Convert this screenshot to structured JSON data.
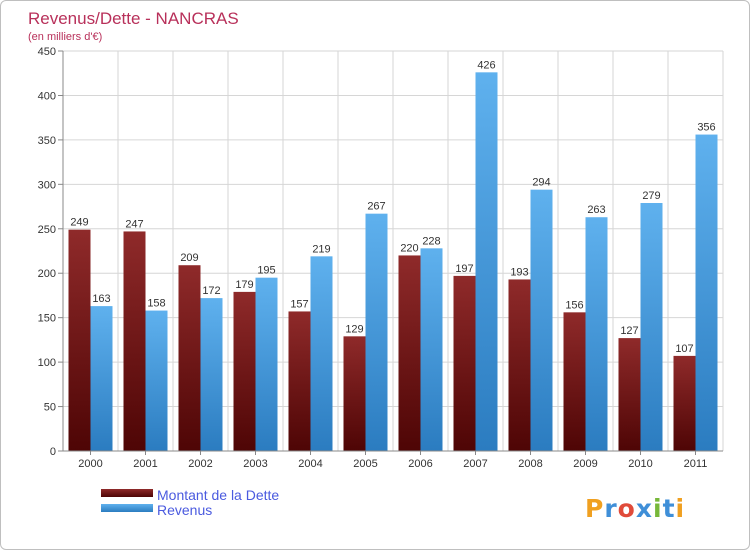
{
  "chart_data": {
    "type": "bar",
    "title": "Revenus/Dette - NANCRAS",
    "subtitle": "(en milliers d'€)",
    "categories": [
      "2000",
      "2001",
      "2002",
      "2003",
      "2004",
      "2005",
      "2006",
      "2007",
      "2008",
      "2009",
      "2010",
      "2011"
    ],
    "series": [
      {
        "name": "Montant de la Dette",
        "color": "#7b1c1c",
        "values": [
          249,
          247,
          209,
          179,
          157,
          129,
          220,
          197,
          193,
          156,
          127,
          107
        ]
      },
      {
        "name": "Revenus",
        "color": "#4aa3e6",
        "values": [
          163,
          158,
          172,
          195,
          219,
          267,
          228,
          426,
          294,
          263,
          279,
          356
        ]
      }
    ],
    "ylim": [
      0,
      450
    ],
    "yticks": [
      0,
      50,
      100,
      150,
      200,
      250,
      300,
      350,
      400,
      450
    ],
    "grid": true,
    "legend_position": "bottom-left",
    "logo_text": "Proxiti"
  }
}
